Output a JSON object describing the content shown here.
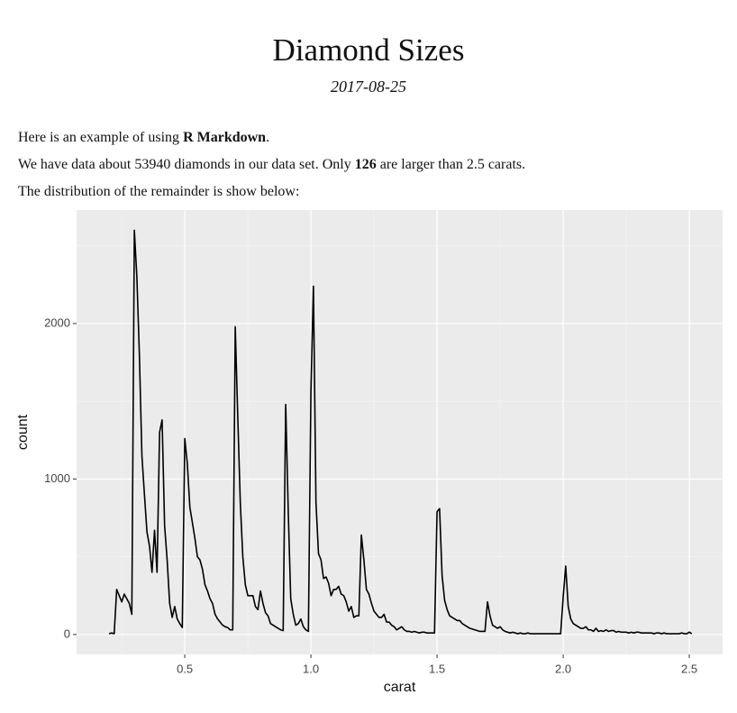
{
  "header": {
    "title": "Diamond Sizes",
    "date": "2017-08-25"
  },
  "paragraphs": [
    [
      {
        "text": "Here is an example of using "
      },
      {
        "text": "R Markdown",
        "bold": true
      },
      {
        "text": "."
      }
    ],
    [
      {
        "text": "We have data about 53940 diamonds in our data set. Only "
      },
      {
        "text": "126",
        "bold": true
      },
      {
        "text": " are larger than 2.5 carats."
      }
    ],
    [
      {
        "text": "The distribution of the remainder is show below:"
      }
    ]
  ],
  "chart_data": {
    "type": "line",
    "xlabel": "carat",
    "ylabel": "count",
    "color": "#000000",
    "grid": true,
    "xlim": [
      0.071,
      2.632
    ],
    "ylim": [
      -128,
      2730
    ],
    "xticks": [
      0.5,
      {
        "value": 1,
        "label": "1.0"
      },
      1.5,
      {
        "value": 2,
        "label": "2.0"
      },
      2.5
    ],
    "yticks": [
      0,
      1000,
      2000
    ],
    "xminor": [
      0.25,
      0.75,
      1.25,
      1.75,
      2.25
    ],
    "yminor": [
      500,
      1500,
      2500
    ],
    "x": [
      0.2,
      0.21,
      0.22,
      0.23,
      0.24,
      0.25,
      0.26,
      0.27,
      0.28,
      0.29,
      0.3,
      0.31,
      0.32,
      0.33,
      0.34,
      0.35,
      0.36,
      0.37,
      0.38,
      0.39,
      0.4,
      0.41,
      0.42,
      0.43,
      0.44,
      0.45,
      0.46,
      0.47,
      0.48,
      0.49,
      0.5,
      0.51,
      0.52,
      0.53,
      0.54,
      0.55,
      0.56,
      0.57,
      0.58,
      0.59,
      0.6,
      0.61,
      0.62,
      0.63,
      0.64,
      0.65,
      0.66,
      0.67,
      0.68,
      0.69,
      0.7,
      0.71,
      0.72,
      0.73,
      0.74,
      0.75,
      0.76,
      0.77,
      0.78,
      0.79,
      0.8,
      0.81,
      0.82,
      0.83,
      0.84,
      0.85,
      0.86,
      0.87,
      0.88,
      0.89,
      0.9,
      0.91,
      0.92,
      0.93,
      0.94,
      0.95,
      0.96,
      0.97,
      0.98,
      0.99,
      1.0,
      1.01,
      1.02,
      1.03,
      1.04,
      1.05,
      1.06,
      1.07,
      1.08,
      1.09,
      1.1,
      1.11,
      1.12,
      1.13,
      1.14,
      1.15,
      1.16,
      1.17,
      1.18,
      1.19,
      1.2,
      1.21,
      1.22,
      1.23,
      1.24,
      1.25,
      1.26,
      1.27,
      1.28,
      1.29,
      1.3,
      1.31,
      1.32,
      1.33,
      1.34,
      1.35,
      1.36,
      1.37,
      1.38,
      1.39,
      1.4,
      1.41,
      1.42,
      1.43,
      1.44,
      1.45,
      1.46,
      1.47,
      1.48,
      1.49,
      1.5,
      1.51,
      1.52,
      1.53,
      1.54,
      1.55,
      1.56,
      1.57,
      1.58,
      1.59,
      1.6,
      1.61,
      1.62,
      1.63,
      1.64,
      1.65,
      1.66,
      1.67,
      1.68,
      1.69,
      1.7,
      1.71,
      1.72,
      1.73,
      1.74,
      1.75,
      1.76,
      1.77,
      1.78,
      1.79,
      1.8,
      1.81,
      1.82,
      1.83,
      1.84,
      1.85,
      1.86,
      1.87,
      1.88,
      1.89,
      1.9,
      1.91,
      1.92,
      1.93,
      1.94,
      1.95,
      1.96,
      1.97,
      1.98,
      1.99,
      2.0,
      2.01,
      2.02,
      2.03,
      2.04,
      2.05,
      2.06,
      2.07,
      2.08,
      2.09,
      2.1,
      2.11,
      2.12,
      2.13,
      2.14,
      2.15,
      2.16,
      2.17,
      2.18,
      2.19,
      2.2,
      2.21,
      2.22,
      2.23,
      2.24,
      2.25,
      2.26,
      2.27,
      2.28,
      2.29,
      2.3,
      2.31,
      2.32,
      2.33,
      2.34,
      2.35,
      2.36,
      2.37,
      2.38,
      2.39,
      2.4,
      2.41,
      2.42,
      2.43,
      2.44,
      2.45,
      2.46,
      2.47,
      2.48,
      2.49,
      2.5,
      2.51
    ],
    "values": [
      5,
      10,
      5,
      290,
      250,
      210,
      260,
      230,
      200,
      130,
      2600,
      2300,
      1800,
      1150,
      900,
      660,
      570,
      400,
      670,
      400,
      1300,
      1380,
      700,
      480,
      200,
      110,
      180,
      100,
      70,
      45,
      1260,
      1100,
      820,
      720,
      620,
      500,
      480,
      420,
      320,
      280,
      230,
      200,
      130,
      100,
      80,
      60,
      50,
      45,
      30,
      30,
      1980,
      1400,
      850,
      500,
      320,
      250,
      250,
      250,
      180,
      160,
      280,
      200,
      140,
      120,
      70,
      60,
      50,
      40,
      30,
      25,
      1480,
      800,
      230,
      130,
      60,
      70,
      100,
      50,
      30,
      20,
      1560,
      2240,
      850,
      520,
      480,
      360,
      370,
      330,
      250,
      290,
      290,
      310,
      260,
      250,
      210,
      150,
      180,
      110,
      120,
      120,
      640,
      480,
      290,
      260,
      200,
      150,
      130,
      110,
      110,
      130,
      80,
      80,
      60,
      50,
      30,
      40,
      50,
      30,
      20,
      20,
      15,
      20,
      15,
      10,
      15,
      15,
      10,
      10,
      10,
      10,
      790,
      810,
      380,
      220,
      160,
      120,
      110,
      100,
      90,
      90,
      70,
      60,
      50,
      40,
      35,
      30,
      25,
      20,
      20,
      20,
      210,
      120,
      60,
      50,
      40,
      50,
      30,
      20,
      15,
      10,
      15,
      10,
      5,
      10,
      5,
      5,
      10,
      5,
      5,
      5,
      5,
      5,
      5,
      5,
      5,
      5,
      5,
      5,
      5,
      5,
      240,
      440,
      180,
      100,
      70,
      60,
      50,
      40,
      40,
      50,
      30,
      30,
      20,
      40,
      20,
      25,
      20,
      30,
      20,
      25,
      25,
      15,
      20,
      15,
      15,
      15,
      10,
      15,
      10,
      15,
      15,
      10,
      10,
      10,
      10,
      10,
      5,
      10,
      10,
      5,
      10,
      5,
      5,
      5,
      5,
      5,
      5,
      10,
      5,
      5,
      15,
      5
    ]
  }
}
